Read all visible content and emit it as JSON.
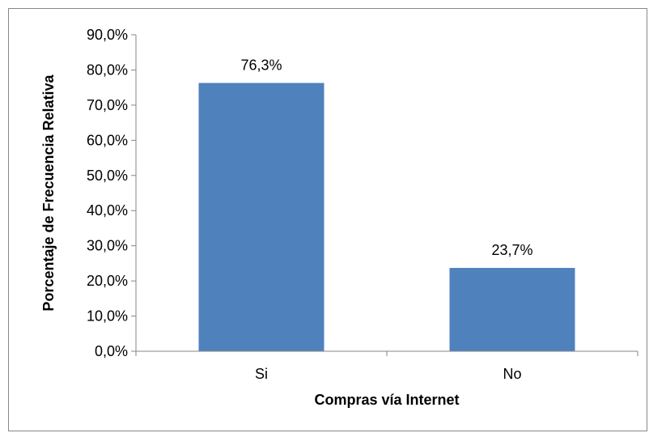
{
  "chart_data": {
    "type": "bar",
    "categories": [
      "Si",
      "No"
    ],
    "values": [
      76.3,
      23.7
    ],
    "data_labels": [
      "76,3%",
      "23,7%"
    ],
    "title": "",
    "xlabel": "Compras vía Internet",
    "ylabel": "Porcentaje de Frecuencia Relativa",
    "ylim": [
      0,
      90
    ],
    "y_ticks": [
      0,
      10,
      20,
      30,
      40,
      50,
      60,
      70,
      80,
      90
    ],
    "y_tick_labels": [
      "0,0%",
      "10,0%",
      "20,0%",
      "30,0%",
      "40,0%",
      "50,0%",
      "60,0%",
      "70,0%",
      "80,0%",
      "90,0%"
    ],
    "grid": false,
    "legend": "none",
    "bar_color": "#4F81BD"
  }
}
